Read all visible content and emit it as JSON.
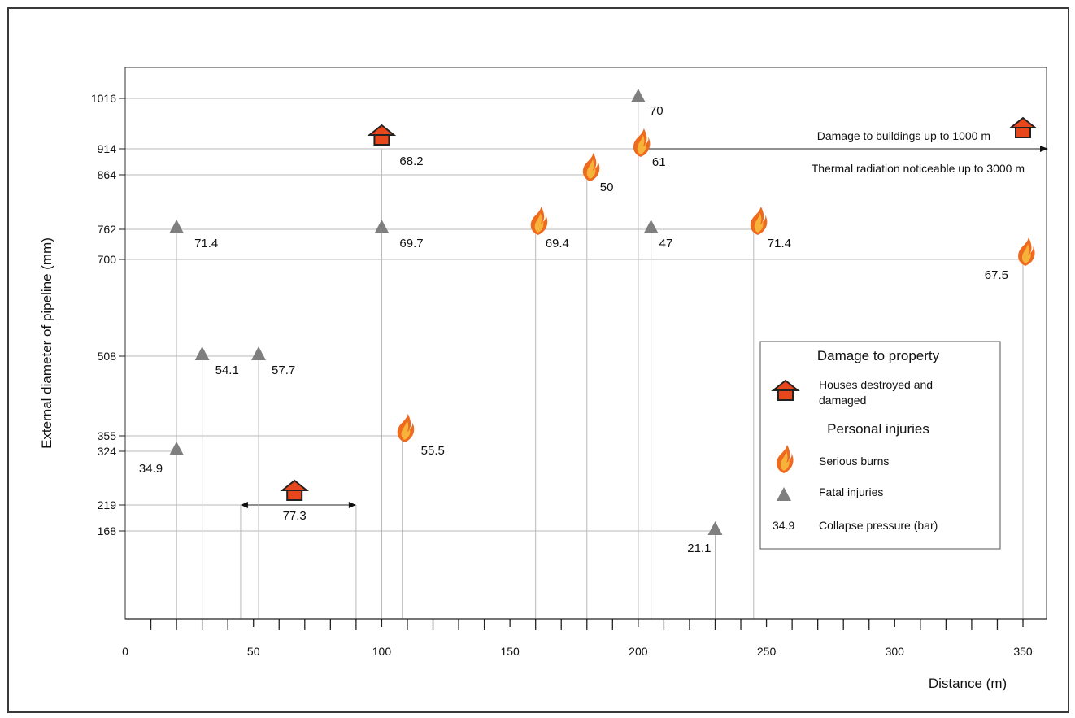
{
  "chart_data": {
    "type": "scatter",
    "xlabel": "Distance (m)",
    "ylabel": "External diameter of pipeline (mm)",
    "x_ticks": [
      0,
      50,
      100,
      150,
      200,
      250,
      300,
      350
    ],
    "y_ticks": [
      168,
      219,
      324,
      355,
      508,
      700,
      762,
      864,
      914,
      1016
    ],
    "xlim": [
      0,
      360
    ],
    "grid": false,
    "series": [
      {
        "name": "Houses destroyed and damaged",
        "marker": "house",
        "points": [
          {
            "x": 100,
            "y": 914,
            "label": "68.2"
          },
          {
            "x": 66,
            "y": 219,
            "label": "77.3",
            "range": [
              45,
              90
            ]
          },
          {
            "x": 350,
            "y": 914,
            "label": ""
          }
        ]
      },
      {
        "name": "Serious burns",
        "marker": "flame",
        "points": [
          {
            "x": 200,
            "y": 914,
            "label": "61"
          },
          {
            "x": 180,
            "y": 864,
            "label": "50"
          },
          {
            "x": 160,
            "y": 762,
            "label": "69.4"
          },
          {
            "x": 245,
            "y": 762,
            "label": "71.4"
          },
          {
            "x": 350,
            "y": 700,
            "label": "67.5"
          },
          {
            "x": 108,
            "y": 355,
            "label": "55.5"
          }
        ]
      },
      {
        "name": "Fatal injuries",
        "marker": "triangle",
        "points": [
          {
            "x": 200,
            "y": 1016,
            "label": "70"
          },
          {
            "x": 20,
            "y": 762,
            "label": "71.4"
          },
          {
            "x": 100,
            "y": 762,
            "label": "69.7"
          },
          {
            "x": 205,
            "y": 762,
            "label": "47"
          },
          {
            "x": 30,
            "y": 508,
            "label": "54.1"
          },
          {
            "x": 52,
            "y": 508,
            "label": "57.7"
          },
          {
            "x": 20,
            "y": 324,
            "label": "34.9"
          },
          {
            "x": 230,
            "y": 168,
            "label": "21.1"
          }
        ]
      }
    ],
    "annotations": [
      "Damage to buildings up to 1000 m",
      "Thermal radiation noticeable up to 3000 m"
    ],
    "legend": {
      "placement": "bottom-right",
      "title_property": "Damage to property",
      "houses_line1": "Houses destroyed and",
      "houses_line2": "damaged",
      "title_injuries": "Personal injuries",
      "burns": "Serious burns",
      "fatal": "Fatal injuries",
      "pressure_example": "34.9",
      "pressure_text": "Collapse pressure (bar)"
    },
    "colors": {
      "house_fill": "#e8471c",
      "house_stroke": "#222222",
      "flame_outer": "#ee6a1f",
      "flame_inner": "#f7b23a",
      "triangle": "#7f7f7f",
      "guide_line": "#b8b8b8"
    }
  }
}
